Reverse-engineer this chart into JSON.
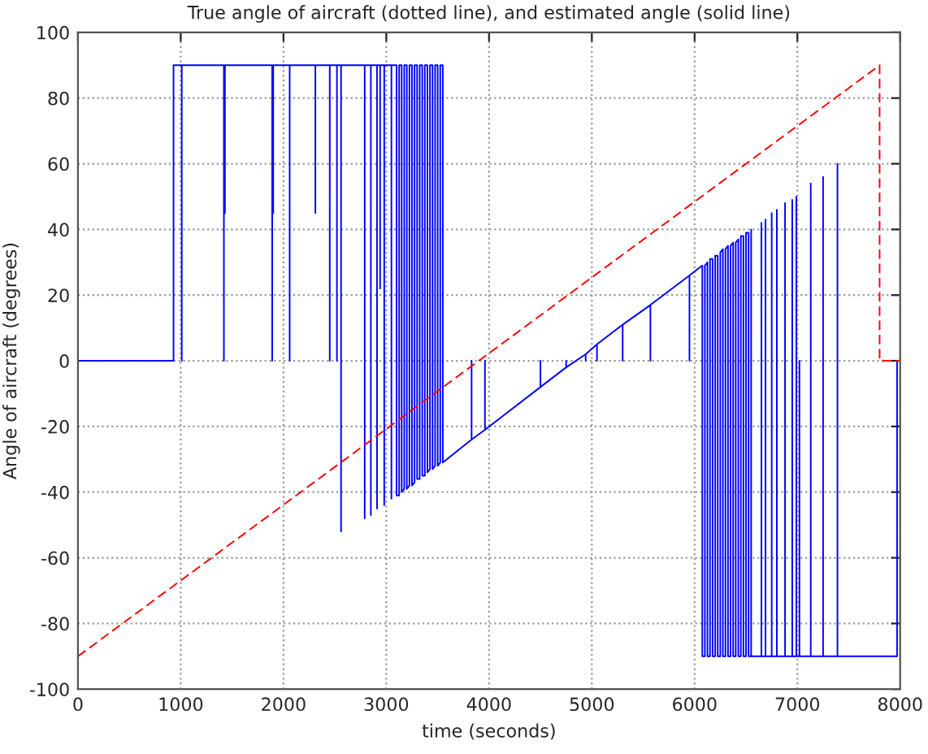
{
  "chart_data": {
    "type": "line",
    "title": "True angle of aircraft (dotted line), and estimated angle (solid line)",
    "xlabel": "time (seconds)",
    "ylabel": "Angle of aircraft (degrees)",
    "xlim": [
      0,
      8000
    ],
    "xticks": [
      0,
      1000,
      2000,
      3000,
      4000,
      5000,
      6000,
      7000,
      8000
    ],
    "ylim": [
      -100,
      100
    ],
    "yticks": [
      -100,
      -80,
      -60,
      -40,
      -20,
      0,
      20,
      40,
      60,
      80,
      100
    ],
    "grid": true,
    "series": [
      {
        "color": "#0000ff",
        "line_style": "solid",
        "x": [
          0,
          930,
          930,
          1010,
          1010,
          1010,
          1420,
          1420,
          1420,
          1430,
          1430,
          1430,
          1890,
          1890,
          1890,
          1900,
          1900,
          1900,
          2060,
          2060,
          2060,
          2310,
          2310,
          2310,
          2450,
          2450,
          2450,
          2520,
          2520,
          2520,
          2560,
          2560,
          2560,
          2790,
          2790,
          2790,
          2850,
          2850,
          2850,
          2910,
          2910,
          2910,
          2940,
          2940,
          2940,
          2980,
          2980,
          2980,
          3050,
          3050,
          3050,
          3100,
          3100,
          3125,
          3125,
          3150,
          3150,
          3175,
          3175,
          3200,
          3200,
          3225,
          3225,
          3250,
          3250,
          3275,
          3275,
          3300,
          3300,
          3325,
          3325,
          3350,
          3350,
          3375,
          3375,
          3400,
          3400,
          3425,
          3425,
          3450,
          3450,
          3475,
          3475,
          3500,
          3500,
          3525,
          3525,
          3550,
          3550,
          3830,
          3830,
          3830,
          3960,
          3960,
          3960,
          4500,
          4500,
          4500,
          4750,
          4750,
          4750,
          4940,
          4940,
          4940,
          5050,
          5050,
          5050,
          5300,
          5300,
          5300,
          5570,
          5570,
          5570,
          5950,
          5950,
          5950,
          6075,
          6075,
          6100,
          6100,
          6125,
          6125,
          6150,
          6150,
          6175,
          6175,
          6200,
          6200,
          6225,
          6225,
          6250,
          6250,
          6275,
          6275,
          6300,
          6300,
          6325,
          6325,
          6350,
          6350,
          6375,
          6375,
          6400,
          6400,
          6425,
          6425,
          6450,
          6450,
          6475,
          6475,
          6500,
          6500,
          6525,
          6525,
          6550,
          6550,
          6550,
          6650,
          6650,
          6650,
          6690,
          6690,
          6690,
          6750,
          6750,
          6750,
          6800,
          6800,
          6800,
          6880,
          6880,
          6880,
          6950,
          6950,
          6950,
          6990,
          6990,
          6990,
          7020,
          7020,
          7020,
          7130,
          7130,
          7130,
          7250,
          7250,
          7250,
          7390,
          7390,
          7390,
          7970,
          7970,
          8000
        ],
        "values": [
          0,
          0,
          90,
          90,
          0,
          90,
          90,
          0,
          90,
          90,
          45,
          90,
          90,
          0,
          90,
          90,
          45,
          90,
          90,
          0,
          90,
          90,
          45,
          90,
          90,
          0,
          90,
          90,
          0,
          90,
          90,
          -52,
          90,
          90,
          -48,
          90,
          90,
          -47,
          90,
          90,
          -45,
          90,
          90,
          22,
          90,
          90,
          -44,
          90,
          90,
          -42,
          90,
          90,
          -41,
          -41,
          90,
          90,
          -40,
          -39,
          90,
          90,
          -39,
          -38,
          90,
          90,
          -38,
          -37,
          90,
          90,
          -36,
          -36,
          90,
          90,
          -35,
          -35,
          90,
          90,
          -34,
          -33,
          90,
          90,
          -33,
          -32,
          90,
          90,
          -32,
          -31,
          90,
          90,
          -31,
          -24,
          0,
          -24,
          -21,
          0,
          -21,
          -8,
          0,
          -8,
          -2,
          0,
          -2,
          2,
          0,
          2,
          5,
          0,
          5,
          11,
          0,
          11,
          17,
          0,
          17,
          26,
          0,
          26,
          29,
          -90,
          -90,
          29,
          30,
          -90,
          -90,
          31,
          31,
          -90,
          -90,
          32,
          32,
          -90,
          -90,
          33,
          34,
          -90,
          -90,
          34,
          35,
          -90,
          -90,
          35,
          36,
          -90,
          -90,
          36,
          37,
          -90,
          -90,
          38,
          38,
          -90,
          -90,
          39,
          39,
          -90,
          -90,
          40,
          -90,
          -90,
          42,
          -90,
          -90,
          43,
          -90,
          -90,
          45,
          -90,
          -90,
          46,
          -90,
          -90,
          48,
          -90,
          -90,
          49,
          -90,
          -90,
          50,
          -90,
          -90,
          0,
          -90,
          -90,
          54,
          -90,
          -90,
          56,
          -90,
          -90,
          60,
          -90,
          -90,
          0,
          0
        ]
      },
      {
        "color": "#ff0000",
        "line_style": "dashed",
        "x": [
          0,
          7800,
          7800,
          8000
        ],
        "values": [
          -90,
          90,
          0,
          0
        ]
      }
    ]
  }
}
